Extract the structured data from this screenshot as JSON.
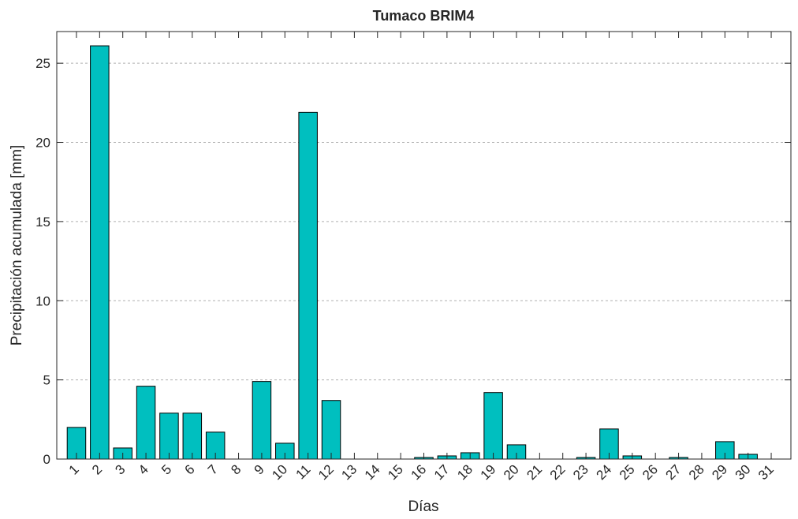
{
  "chart_data": {
    "type": "bar",
    "title": "Tumaco BRIM4",
    "xlabel": "Días",
    "ylabel": "Precipitación acumulada [mm]",
    "x": [
      1,
      2,
      3,
      4,
      5,
      6,
      7,
      8,
      9,
      10,
      11,
      12,
      13,
      14,
      15,
      16,
      17,
      18,
      19,
      20,
      21,
      22,
      23,
      24,
      25,
      26,
      27,
      28,
      29,
      30,
      31
    ],
    "values": [
      2.0,
      26.1,
      0.7,
      4.6,
      2.9,
      2.9,
      1.7,
      0,
      4.9,
      1.0,
      21.9,
      3.7,
      0,
      0,
      0,
      0.1,
      0.2,
      0.4,
      4.2,
      0.9,
      0,
      0,
      0.1,
      1.9,
      0.2,
      0,
      0.1,
      0,
      1.1,
      0.3,
      0
    ],
    "color": "#00bfbf",
    "xlim": [
      0.15,
      31.85
    ],
    "ylim": [
      0,
      27
    ],
    "yticks": [
      0,
      5,
      10,
      15,
      20,
      25
    ],
    "grid": true
  }
}
